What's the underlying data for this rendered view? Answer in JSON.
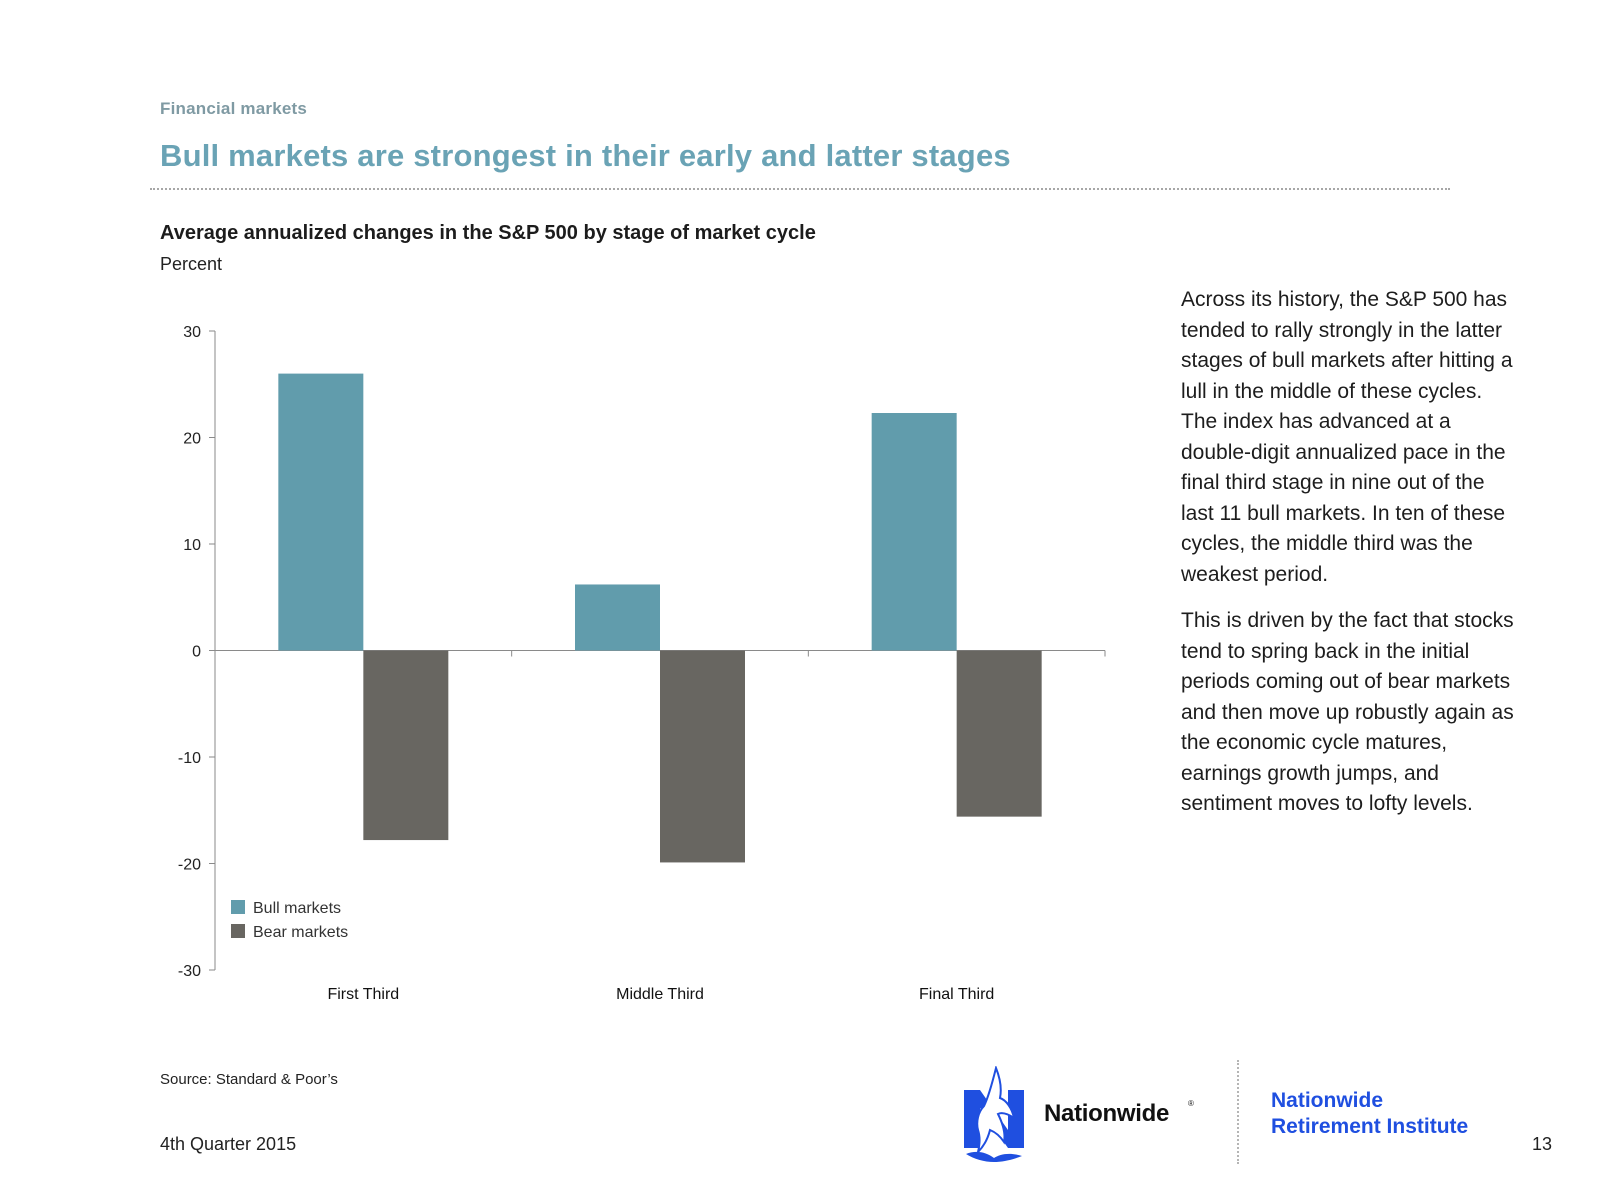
{
  "header": {
    "section": "Financial markets",
    "title": "Bull markets are strongest in their early and latter stages"
  },
  "chart_data": {
    "type": "bar",
    "title": "Average annualized changes in the S&P 500 by stage of market cycle",
    "unit_label": "Percent",
    "xlabel": "",
    "ylabel": "",
    "categories": [
      "First Third",
      "Middle Third",
      "Final Third"
    ],
    "series": [
      {
        "name": "Bull markets",
        "values": [
          26,
          6.2,
          22.3
        ],
        "color": "#619cac"
      },
      {
        "name": "Bear markets",
        "values": [
          -17.8,
          -19.9,
          -15.6
        ],
        "color": "#686661"
      }
    ],
    "ylim": [
      -30,
      30
    ],
    "yticks": [
      30,
      20,
      10,
      0,
      -10,
      -20,
      -30
    ],
    "grid": false,
    "legend_position": "bottom-left"
  },
  "commentary": {
    "paragraphs": [
      "Across its history, the S&P 500 has tended to rally strongly in the latter stages of bull markets after hitting a lull in the middle of these cycles. The index has advanced at a double-digit annualized pace in the final third stage in nine out of the last 11 bull markets. In ten of these cycles, the middle third was the weakest period.",
      "This is driven by the fact that stocks tend to spring back in the initial periods coming out of bear markets and then move up robustly again as the economic cycle matures, earnings growth jumps, and sentiment moves to lofty levels."
    ]
  },
  "footer": {
    "source": "Source: Standard & Poor’s",
    "date": "4th Quarter 2015",
    "brand": "Nationwide",
    "brand_reg": "®",
    "institute_line1": "Nationwide",
    "institute_line2": "Retirement Institute",
    "page_number": "13",
    "brand_color": "#1f4fe0"
  }
}
